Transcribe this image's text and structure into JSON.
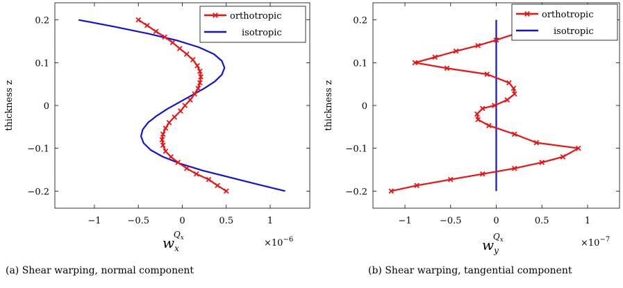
{
  "chart_data": [
    {
      "type": "line",
      "xlabel": {
        "base": "w",
        "sub": "x",
        "sup": "Q",
        "supsub": "x"
      },
      "ylabel": "thickness z",
      "x_multiplier": "×10",
      "x_multiplier_exp": "−6",
      "xlim": [
        -1.45,
        1.45
      ],
      "ylim": [
        -0.24,
        0.24
      ],
      "xticks": [
        -1,
        -0.5,
        0,
        0.5,
        1
      ],
      "xtick_labels": [
        "−1",
        "−0.5",
        "0",
        "0.5",
        "1"
      ],
      "yticks": [
        -0.2,
        -0.1,
        0,
        0.1,
        0.2
      ],
      "ytick_labels": [
        "−0.2",
        "−0.1",
        "0",
        "0.1",
        "0.2"
      ],
      "legend": {
        "placement": "top-right",
        "entries": [
          "orthotropic",
          "isotropic"
        ]
      },
      "series": [
        {
          "name": "orthotropic",
          "color": "#ee1111",
          "marker": "x",
          "x": [
            0.5,
            0.4,
            0.3,
            0.16,
            0.05,
            -0.05,
            -0.13,
            -0.19,
            -0.22,
            -0.23,
            -0.22,
            -0.19,
            -0.15,
            -0.09,
            -0.02,
            0.03,
            0.09,
            0.14,
            0.18,
            0.2,
            0.21,
            0.2,
            0.17,
            0.12,
            0.05,
            -0.03,
            -0.11,
            -0.2,
            -0.3,
            -0.4,
            -0.5
          ],
          "y": [
            -0.2,
            -0.187,
            -0.173,
            -0.16,
            -0.147,
            -0.133,
            -0.12,
            -0.107,
            -0.093,
            -0.08,
            -0.067,
            -0.053,
            -0.04,
            -0.027,
            -0.013,
            0.0,
            0.013,
            0.027,
            0.04,
            0.053,
            0.067,
            0.08,
            0.093,
            0.107,
            0.12,
            0.133,
            0.147,
            0.16,
            0.173,
            0.187,
            0.2
          ]
        },
        {
          "name": "isotropic",
          "color": "#1111dd",
          "marker": "none",
          "x": [
            1.17,
            0.85,
            0.54,
            0.23,
            -0.02,
            -0.22,
            -0.36,
            -0.44,
            -0.47,
            -0.45,
            -0.39,
            -0.29,
            -0.17,
            -0.03,
            0.11,
            0.25,
            0.37,
            0.45,
            0.48,
            0.45,
            0.36,
            0.19,
            -0.06,
            -0.39,
            -0.77,
            -1.18
          ],
          "y": [
            -0.2,
            -0.184,
            -0.168,
            -0.152,
            -0.136,
            -0.12,
            -0.104,
            -0.088,
            -0.072,
            -0.056,
            -0.04,
            -0.024,
            -0.008,
            0.008,
            0.024,
            0.04,
            0.056,
            0.072,
            0.088,
            0.104,
            0.12,
            0.136,
            0.152,
            0.168,
            0.184,
            0.2
          ]
        }
      ],
      "caption": "(a) Shear warping, normal component"
    },
    {
      "type": "line",
      "xlabel": {
        "base": "w",
        "sub": "y",
        "sup": "Q",
        "supsub": "x"
      },
      "ylabel": "thickness z",
      "x_multiplier": "×10",
      "x_multiplier_exp": "−7",
      "xlim": [
        -1.35,
        1.35
      ],
      "ylim": [
        -0.24,
        0.24
      ],
      "xticks": [
        -1,
        -0.5,
        0,
        0.5,
        1
      ],
      "xtick_labels": [
        "−1",
        "−0.5",
        "0",
        "0.5",
        "1"
      ],
      "yticks": [
        -0.2,
        -0.1,
        0,
        0.1,
        0.2
      ],
      "ytick_labels": [
        "−0.2",
        "−0.1",
        "0",
        "0.1",
        "0.2"
      ],
      "legend": {
        "placement": "top-right",
        "entries": [
          "orthotropic",
          "isotropic"
        ]
      },
      "series": [
        {
          "name": "orthotropic",
          "color": "#ee1111",
          "marker": "x",
          "x": [
            -1.15,
            -0.87,
            -0.5,
            -0.15,
            0.2,
            0.5,
            0.73,
            0.9,
            0.44,
            0.2,
            -0.08,
            -0.2,
            -0.21,
            -0.15,
            -0.02,
            0.12,
            0.2,
            0.19,
            0.14,
            -0.1,
            -0.54,
            -0.89,
            -0.67,
            -0.44,
            -0.2,
            0.0,
            0.2,
            0.33
          ],
          "y": [
            -0.2,
            -0.187,
            -0.173,
            -0.16,
            -0.147,
            -0.133,
            -0.12,
            -0.1,
            -0.087,
            -0.067,
            -0.047,
            -0.033,
            -0.02,
            -0.007,
            0.0,
            0.013,
            0.027,
            0.04,
            0.053,
            0.073,
            0.087,
            0.1,
            0.113,
            0.127,
            0.14,
            0.153,
            0.167,
            0.18
          ]
        },
        {
          "name": "isotropic",
          "color": "#1111dd",
          "marker": "none",
          "x": [
            0,
            0
          ],
          "y": [
            -0.2,
            0.2
          ]
        }
      ],
      "caption": "(b) Shear warping, tangential component"
    }
  ]
}
